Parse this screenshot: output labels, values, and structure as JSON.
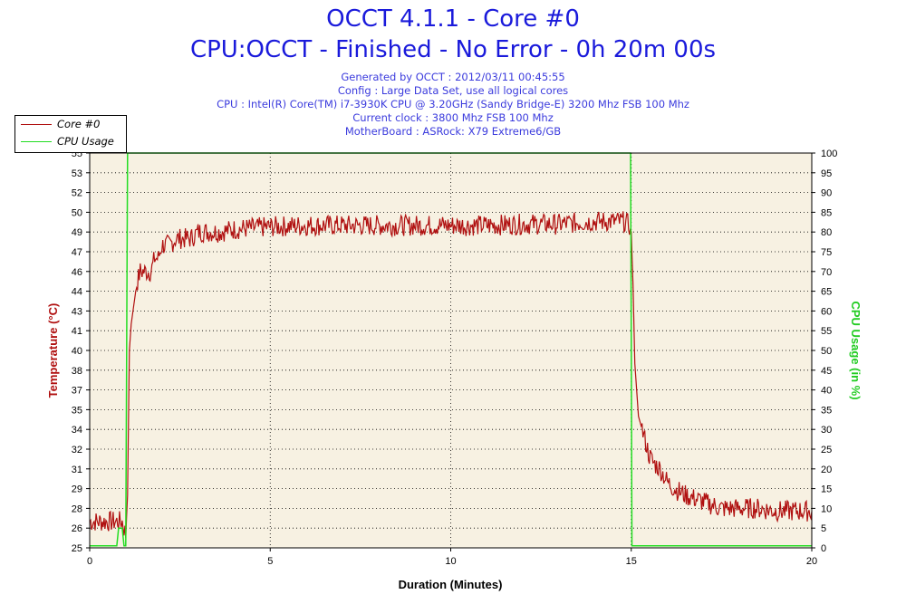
{
  "header": {
    "title": "OCCT 4.1.1 - Core #0",
    "subtitle": "CPU:OCCT - Finished - No Error - 0h 20m 00s",
    "info_lines": [
      "Generated by OCCT : 2012/03/11 00:45:55",
      "Config : Large Data Set, use all logical cores",
      "CPU : Intel(R) Core(TM) i7-3930K CPU @ 3.20GHz (Sandy Bridge-E) 3200 Mhz FSB 100 Mhz",
      "Current clock : 3800 Mhz FSB 100 Mhz",
      "MotherBoard : ASRock: X79 Extreme6/GB"
    ]
  },
  "colors": {
    "temperature": "#b01010",
    "cpu_usage": "#22dd22",
    "plot_bg": "#f7f1e2",
    "title": "#1a1adb",
    "left_axis_label": "#b01010",
    "right_axis_label": "#22cc22"
  },
  "chart_data": {
    "type": "line",
    "title": "OCCT 4.1.1 - Core #0",
    "subtitle": "CPU:OCCT - Finished - No Error - 0h 20m 00s",
    "xlabel": "Duration (Minutes)",
    "ylabel_left": "Temperature (°C)",
    "ylabel_right": "CPU Usage (in %)",
    "xlim": [
      0,
      20
    ],
    "ylim_left": [
      25,
      55
    ],
    "ylim_right": [
      0,
      100
    ],
    "x_ticks": [
      "0",
      "5",
      "10",
      "15",
      "20"
    ],
    "y_ticks_left": [
      "25",
      "26",
      "28",
      "29",
      "31",
      "32",
      "34",
      "35",
      "37",
      "38",
      "40",
      "41",
      "43",
      "44",
      "46",
      "47",
      "49",
      "50",
      "52",
      "53",
      "55"
    ],
    "y_ticks_right": [
      "0",
      "5",
      "10",
      "15",
      "20",
      "25",
      "30",
      "35",
      "40",
      "45",
      "50",
      "55",
      "60",
      "65",
      "70",
      "75",
      "80",
      "85",
      "90",
      "95",
      "100"
    ],
    "grid": true,
    "legend_position": "top-left",
    "series": [
      {
        "name": "Core #0",
        "axis": "left",
        "x": [
          0,
          0.1,
          0.2,
          0.3,
          0.4,
          0.5,
          0.6,
          0.7,
          0.8,
          0.9,
          1.0,
          1.05,
          1.1,
          1.15,
          1.2,
          1.3,
          1.4,
          1.5,
          1.6,
          1.7,
          1.8,
          1.9,
          2.0,
          2.2,
          2.4,
          2.6,
          2.8,
          3.0,
          3.3,
          3.6,
          4.0,
          4.5,
          5.0,
          6.0,
          7.0,
          8.0,
          9.0,
          10.0,
          11.0,
          12.0,
          13.0,
          13.9,
          14.5,
          14.8,
          14.95,
          15.0,
          15.05,
          15.1,
          15.2,
          15.3,
          15.4,
          15.5,
          15.6,
          15.8,
          16.0,
          16.2,
          16.5,
          17.0,
          17.5,
          18.0,
          18.5,
          19.0,
          19.5,
          20.0
        ],
        "values": [
          27,
          27,
          27,
          27,
          27,
          27,
          27,
          27,
          27,
          27,
          26,
          29,
          40,
          42,
          43,
          45,
          46,
          46,
          46,
          46,
          47,
          47,
          48,
          48,
          48.5,
          48.5,
          48.5,
          49,
          49,
          49,
          49.2,
          49.3,
          49.4,
          49.5,
          49.5,
          49.5,
          49.5,
          49.5,
          49.5,
          49.6,
          49.6,
          49.8,
          49.8,
          49.8,
          49.5,
          49,
          45,
          39,
          35,
          34,
          33,
          32,
          31.5,
          31,
          30,
          29.5,
          29,
          28.5,
          28,
          28,
          28,
          27.8,
          27.8,
          27.8
        ]
      },
      {
        "name": "CPU Usage",
        "axis": "right",
        "x": [
          0,
          0.5,
          0.75,
          0.8,
          0.9,
          0.95,
          1.0,
          1.05,
          1.1,
          2.0,
          5.0,
          10.0,
          14.95,
          14.98,
          15.0,
          15.02,
          16.0,
          20.0
        ],
        "values": [
          0.5,
          0.5,
          0.5,
          5,
          5,
          0.5,
          0.5,
          100,
          100,
          100,
          100,
          100,
          100,
          100,
          50,
          0.5,
          0.5,
          0.5
        ]
      }
    ]
  }
}
